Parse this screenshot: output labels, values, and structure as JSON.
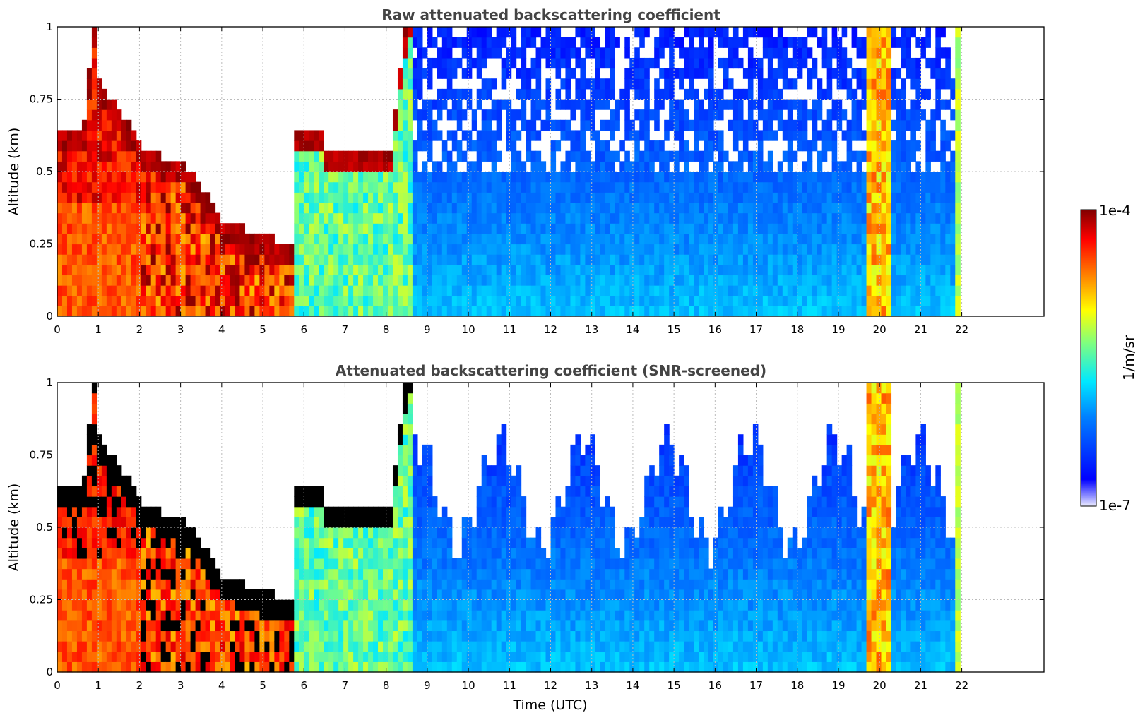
{
  "chart_data": [
    {
      "type": "heatmap",
      "title": "Raw attenuated backscattering coefficient",
      "xlabel": "",
      "ylabel": "Altitude (km)",
      "xlim": [
        0,
        24
      ],
      "ylim": [
        0,
        1
      ],
      "x_ticks": [
        "0",
        "1",
        "2",
        "3",
        "4",
        "5",
        "6",
        "7",
        "8",
        "9",
        "10",
        "11",
        "12",
        "13",
        "14",
        "15",
        "16",
        "17",
        "18",
        "19",
        "20",
        "21",
        "22"
      ],
      "y_ticks": [
        "0",
        "0.25",
        "0.5",
        "0.75",
        "1"
      ],
      "grid": true,
      "screened": false
    },
    {
      "type": "heatmap",
      "title": "Attenuated backscattering coefficient (SNR-screened)",
      "xlabel": "Time (UTC)",
      "ylabel": "Altitude (km)",
      "xlim": [
        0,
        24
      ],
      "ylim": [
        0,
        1
      ],
      "x_ticks": [
        "0",
        "1",
        "2",
        "3",
        "4",
        "5",
        "6",
        "7",
        "8",
        "9",
        "10",
        "11",
        "12",
        "13",
        "14",
        "15",
        "16",
        "17",
        "18",
        "19",
        "20",
        "21",
        "22"
      ],
      "y_ticks": [
        "0",
        "0.25",
        "0.5",
        "0.75",
        "1"
      ],
      "grid": true,
      "screened": true
    }
  ],
  "colorbar": {
    "label": "1/m/sr",
    "min_label": "1e-7",
    "max_label": "1e-4",
    "scale": "log",
    "colormap": "jet"
  }
}
